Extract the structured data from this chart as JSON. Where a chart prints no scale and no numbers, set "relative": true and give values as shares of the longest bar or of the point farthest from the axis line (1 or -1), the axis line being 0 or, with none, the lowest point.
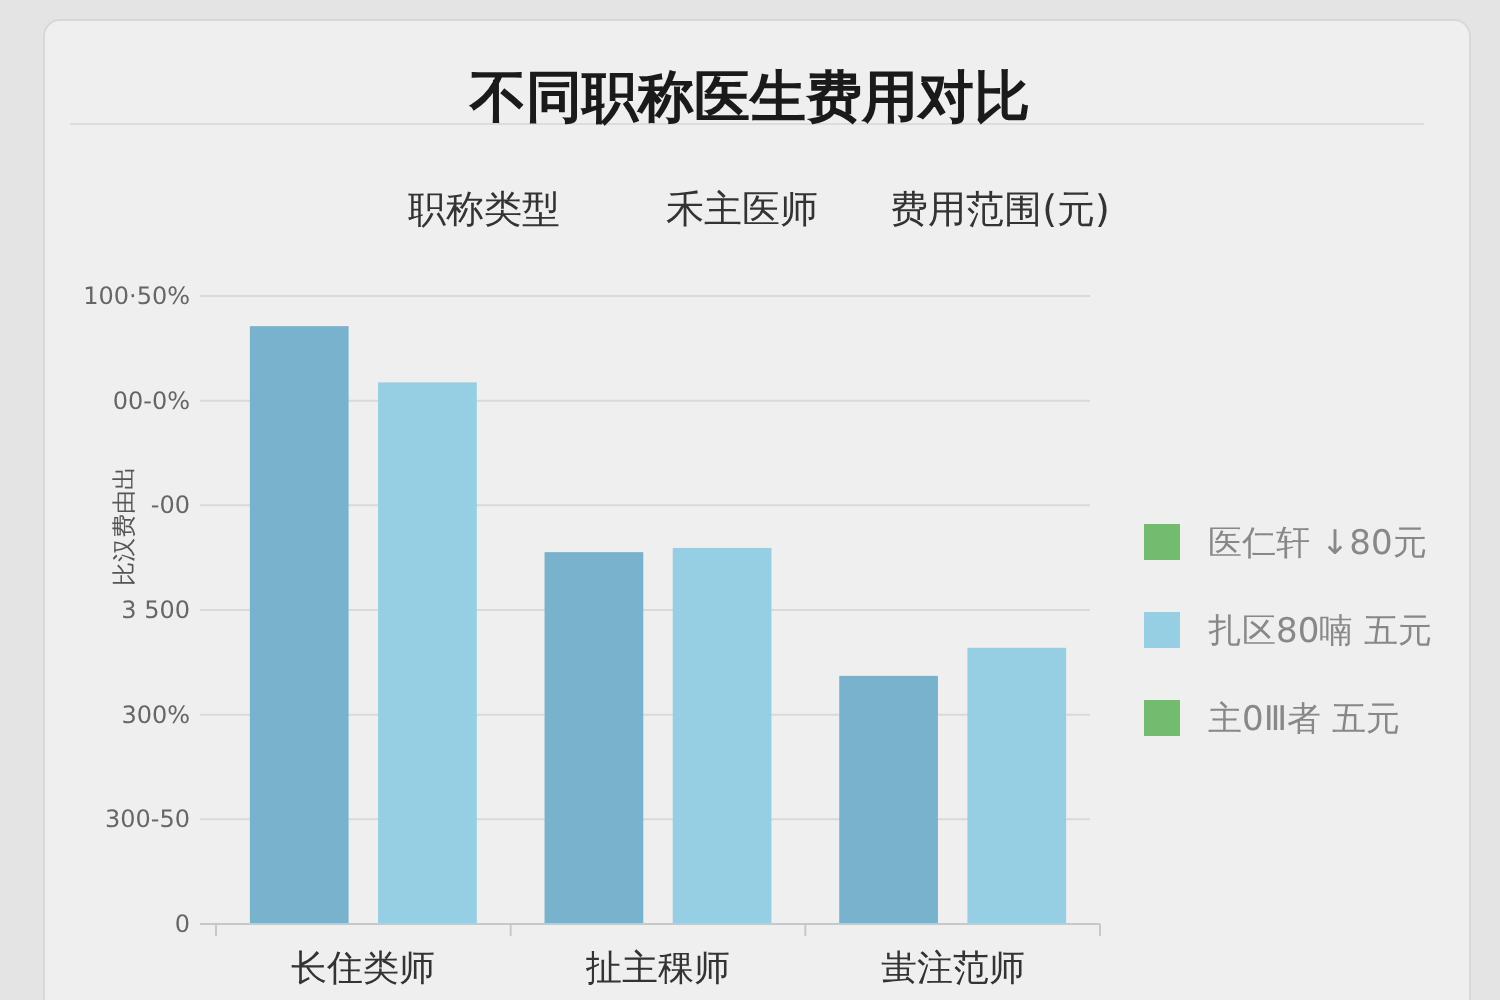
{
  "chart_data": {
    "type": "bar",
    "title": "不同职称医生费用对比",
    "annotations": [
      "职称类型",
      "禾主医师",
      "费用范围(元)",
      "100·50%",
      "00-0%",
      "-00",
      "3 500",
      "300%",
      "300-50",
      "0"
    ],
    "ylabel": "比汉费由出",
    "categories": [
      "长住类师",
      "扯主稞师",
      "蚩注范师"
    ],
    "relative": true,
    "series": [
      {
        "name": "医仁轩 ↓80元",
        "color": "#72bb6f",
        "values": [
          null,
          null,
          null
        ]
      },
      {
        "color": "#79b2cc",
        "values": [
          1,
          0.622,
          0.415
        ]
      },
      {
        "name": "扎区80喃 五元",
        "color": "#96cfe4",
        "values": [
          0.906,
          0.629,
          0.462
        ]
      },
      {
        "name": "主0Ⅲ者 五元",
        "color": "#72bb6f",
        "values": [
          null,
          null,
          null
        ]
      }
    ],
    "grid": "y",
    "legend": "right"
  }
}
